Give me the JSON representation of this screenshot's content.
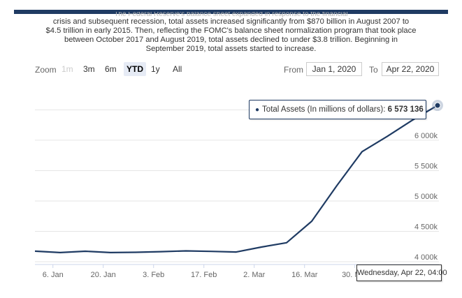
{
  "intro": {
    "cut_line": "The Federal Reserve's balance sheet expanded in response to the financial",
    "lines": [
      "crisis and subsequent recession, total assets increased significantly from $870 billion in August 2007 to",
      "$4.5 trillion in early 2015. Then, reflecting the FOMC's balance sheet normalization program that took place",
      "between October 2017 and August 2019, total assets declined to under $3.8 trillion. Beginning in",
      "September 2019, total assets started to increase."
    ]
  },
  "zoom": {
    "label": "Zoom",
    "buttons": [
      "1m",
      "3m",
      "6m",
      "YTD",
      "1y",
      "All"
    ],
    "active": "YTD",
    "disabled": [
      "1m"
    ]
  },
  "range": {
    "from_label": "From",
    "from_value": "Jan 1, 2020",
    "to_label": "To",
    "to_value": "Apr 22, 2020"
  },
  "tooltip": {
    "series": "Total Assets (In millions of dollars):",
    "value": "6 573 136"
  },
  "x_tooltip": "Wednesday, Apr 22, 04:00",
  "colors": {
    "series": "#1f3b63",
    "grid": "#e6e6e6",
    "header": "#1f3b63"
  },
  "chart_data": {
    "type": "line",
    "series": [
      {
        "name": "Total Assets (In millions of dollars)",
        "x": [
          "2020-01-01",
          "2020-01-08",
          "2020-01-15",
          "2020-01-22",
          "2020-01-29",
          "2020-02-05",
          "2020-02-12",
          "2020-02-19",
          "2020-02-26",
          "2020-03-04",
          "2020-03-11",
          "2020-03-18",
          "2020-03-25",
          "2020-04-01",
          "2020-04-08",
          "2020-04-15",
          "2020-04-22"
        ],
        "values": [
          4174000,
          4150000,
          4172000,
          4150000,
          4155000,
          4166000,
          4178000,
          4170000,
          4160000,
          4241000,
          4312000,
          4666000,
          5254000,
          5812000,
          6063000,
          6330000,
          6573136
        ]
      }
    ],
    "x_ticks": [
      "6. Jan",
      "20. Jan",
      "3. Feb",
      "17. Feb",
      "2. Mar",
      "16. Mar",
      "30. Mar"
    ],
    "y_ticks": [
      "4 000k",
      "4 500k",
      "5 000k",
      "5 500k",
      "6 000k"
    ],
    "ylim": [
      4000000,
      6700000
    ],
    "grid": true,
    "legend": "none"
  }
}
